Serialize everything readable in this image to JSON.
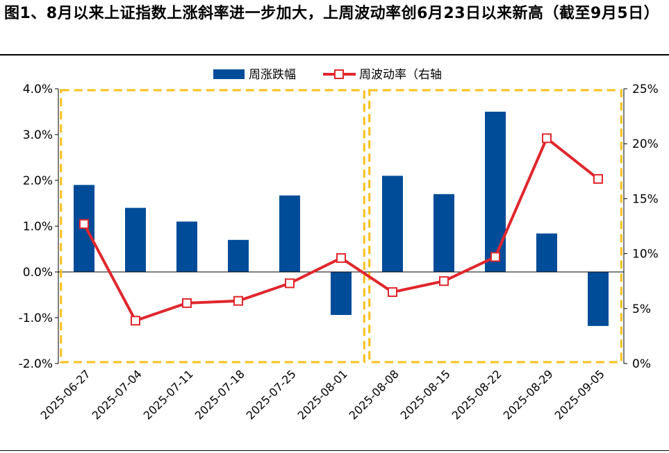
{
  "title": "图1、8月以来上证指数上涨斜率进一步加大，上周波动率创6月23日以来新高（截至9月5日）",
  "chart_data": {
    "type": "bar+line",
    "categories": [
      "2025-06-27",
      "2025-07-04",
      "2025-07-11",
      "2025-07-18",
      "2025-07-25",
      "2025-08-01",
      "2025-08-08",
      "2025-08-15",
      "2025-08-22",
      "2025-08-29",
      "2025-09-05"
    ],
    "series": [
      {
        "name": "周涨跌幅",
        "type": "bar",
        "axis": "left",
        "color": "#004c98",
        "values": [
          0.019,
          0.014,
          0.011,
          0.007,
          0.0167,
          -0.0094,
          0.021,
          0.017,
          0.035,
          0.0084,
          -0.0118
        ]
      },
      {
        "name": "周波动率（右轴",
        "type": "line",
        "axis": "right",
        "color": "#e0262c",
        "values": [
          0.127,
          0.039,
          0.055,
          0.057,
          0.073,
          0.096,
          0.065,
          0.075,
          0.097,
          0.205,
          0.168
        ]
      }
    ],
    "y_left": {
      "lim": [
        -0.02,
        0.04
      ],
      "ticks": [
        "-2.0%",
        "-1.0%",
        "0.0%",
        "1.0%",
        "2.0%",
        "3.0%",
        "4.0%"
      ],
      "tick_values": [
        -0.02,
        -0.01,
        0,
        0.01,
        0.02,
        0.03,
        0.04
      ]
    },
    "y_right": {
      "lim": [
        0,
        0.25
      ],
      "ticks": [
        "0%",
        "5%",
        "10%",
        "15%",
        "20%",
        "25%"
      ],
      "tick_values": [
        0,
        0.05,
        0.1,
        0.15,
        0.2,
        0.25
      ]
    },
    "legend": "top-center",
    "highlight_color": "#f8c01b",
    "highlight_groups": [
      [
        0,
        5
      ],
      [
        6,
        10
      ]
    ]
  }
}
